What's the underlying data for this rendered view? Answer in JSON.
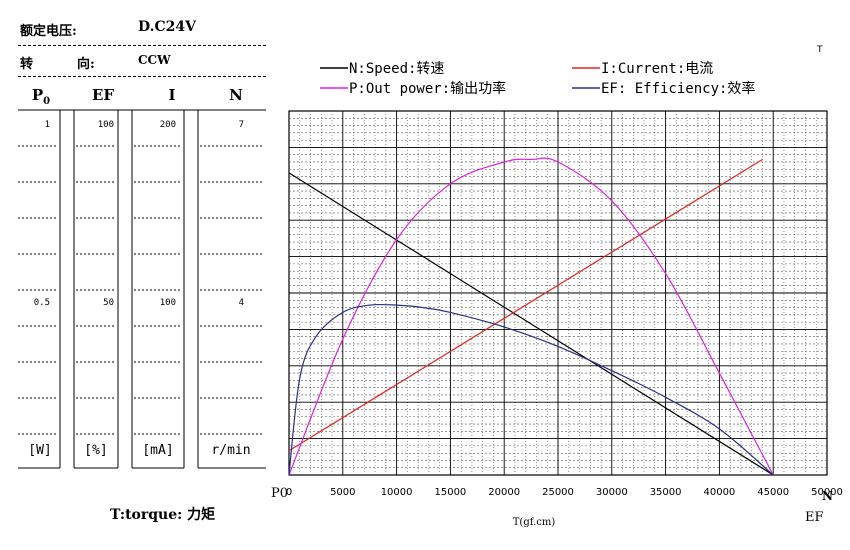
{
  "header": {
    "voltage_label": "额定电压:",
    "voltage_value": "D.C24V",
    "direction_label_1": "转",
    "direction_label_2": "向:",
    "direction_value": "CCW"
  },
  "scale_table": {
    "columns": [
      "P0",
      "EF",
      "I",
      "N"
    ],
    "top_values": [
      "1",
      "100",
      "200",
      "7"
    ],
    "mid_values": [
      "0.5",
      "50",
      "100",
      "4"
    ],
    "units": [
      "[W]",
      "[%]",
      "[mA]",
      "r/min"
    ]
  },
  "footer": {
    "torque_label": "T:torque: 力矩",
    "p0_corner": "P0",
    "t_corner": "T",
    "ef_corner": "EF",
    "n_corner": "N"
  },
  "legend": {
    "speed": "N:Speed:转速",
    "current": "I:Current:电流",
    "power": "P:Out power:输出功率",
    "efficiency": "EF: Efficiency:效率"
  },
  "colors": {
    "speed": "#000000",
    "current": "#e8241f",
    "power": "#e020e0",
    "efficiency": "#2a2f8c"
  },
  "chart_data": {
    "type": "line",
    "xlabel": "T(gf.cm)",
    "x_ticks": [
      "0",
      "5000",
      "10000",
      "15000",
      "20000",
      "25000",
      "30000",
      "35000",
      "40000",
      "45000",
      "50000"
    ],
    "xlim": [
      0,
      50000
    ],
    "grid": true,
    "series": [
      {
        "name": "N:Speed:转速",
        "color": "#000000",
        "axis_max": 10,
        "x": [
          0,
          45000
        ],
        "y": [
          8.3,
          0
        ]
      },
      {
        "name": "I:Current:电流",
        "color": "#e8241f",
        "axis_max": 300,
        "x": [
          0,
          44000
        ],
        "y": [
          20,
          260
        ]
      },
      {
        "name": "P:Out power:输出功率",
        "color": "#e020e0",
        "axis_max": 1.5,
        "x": [
          0,
          5000,
          10000,
          15000,
          20000,
          22500,
          25000,
          30000,
          35000,
          40000,
          45000
        ],
        "y": [
          0,
          0.56,
          0.97,
          1.2,
          1.29,
          1.3,
          1.29,
          1.13,
          0.83,
          0.42,
          0
        ]
      },
      {
        "name": "EF: Efficiency:效率",
        "color": "#2a2f8c",
        "axis_max": 150,
        "x": [
          0,
          1000,
          2500,
          5000,
          7500,
          10000,
          12500,
          15000,
          20000,
          25000,
          30000,
          35000,
          40000,
          45000
        ],
        "y": [
          0,
          40,
          57,
          67,
          70,
          70,
          69,
          67,
          61,
          53,
          43,
          32,
          19,
          0
        ]
      }
    ]
  }
}
